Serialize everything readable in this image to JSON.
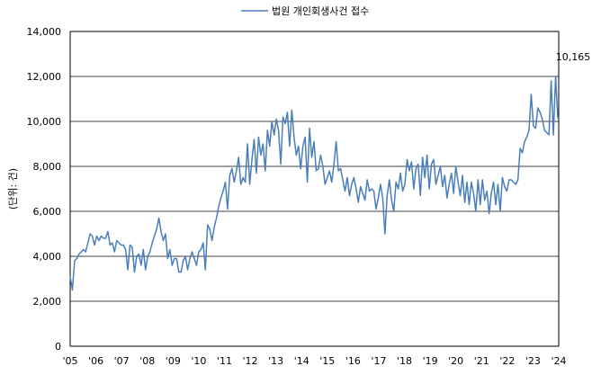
{
  "chart_data": {
    "type": "line",
    "title": "",
    "xlabel": "",
    "ylabel": "(단위: 건)",
    "ylim": [
      0,
      14000
    ],
    "yticks": [
      "0",
      "2,000",
      "4,000",
      "6,000",
      "8,000",
      "10,000",
      "12,000",
      "14,000"
    ],
    "xticks": [
      "'05",
      "'06",
      "'07",
      "'08",
      "'09",
      "'10",
      "'11",
      "'12",
      "'13",
      "'14",
      "'15",
      "'16",
      "'17",
      "'18",
      "'19",
      "'20",
      "'21",
      "'22",
      "'23",
      "'24"
    ],
    "grid": "horizontal",
    "legend": "top-center",
    "series": [
      {
        "name": "법원 개인회생사건 접수",
        "color": "#4a7ebb",
        "values": [
          3100,
          2500,
          3800,
          3900,
          4100,
          4200,
          4300,
          4200,
          4600,
          5000,
          4900,
          4500,
          4900,
          4700,
          4900,
          4800,
          4800,
          5100,
          4500,
          4600,
          4200,
          4700,
          4600,
          4500,
          4500,
          4300,
          3400,
          4500,
          4400,
          3300,
          4000,
          4100,
          3600,
          4300,
          3400,
          4000,
          4200,
          4600,
          4900,
          5200,
          5700,
          5100,
          4700,
          5000,
          3900,
          4300,
          3600,
          3900,
          3900,
          3300,
          3300,
          3800,
          4000,
          3400,
          3900,
          4200,
          3900,
          3600,
          4200,
          4300,
          4600,
          3400,
          5400,
          5200,
          4700,
          5300,
          5700,
          6200,
          6600,
          6900,
          7300,
          6100,
          7600,
          7900,
          7300,
          7800,
          8400,
          7200,
          7500,
          7300,
          9000,
          7200,
          8300,
          9200,
          7700,
          9300,
          8500,
          9000,
          7800,
          9600,
          8900,
          10000,
          9400,
          10100,
          9600,
          8100,
          10200,
          9900,
          10400,
          8900,
          10500,
          9300,
          8500,
          8900,
          7900,
          8900,
          9300,
          7300,
          9700,
          8400,
          9100,
          7800,
          7900,
          8500,
          8000,
          7200,
          7500,
          7800,
          7300,
          8100,
          9100,
          7800,
          7900,
          7400,
          6900,
          7500,
          6700,
          7200,
          7500,
          7000,
          6400,
          7100,
          6800,
          6500,
          7400,
          6900,
          7000,
          6900,
          6100,
          6600,
          7200,
          6600,
          5000,
          6700,
          7400,
          6500,
          6000,
          7300,
          7000,
          7700,
          6900,
          7200,
          8300,
          7800,
          8200,
          7000,
          7900,
          8100,
          6700,
          8400,
          7500,
          8500,
          7000,
          8100,
          8300,
          7200,
          7600,
          8000,
          7100,
          7600,
          6600,
          7200,
          7700,
          6800,
          8000,
          7300,
          6700,
          7600,
          6400,
          7300,
          6300,
          7300,
          6800,
          6000,
          7400,
          6300,
          7400,
          6500,
          6900,
          5900,
          6800,
          7300,
          6300,
          7200,
          6000,
          7500,
          7100,
          6900,
          7400,
          7400,
          7300,
          7200,
          7400,
          8800,
          8600,
          9100,
          9300,
          9600,
          11200,
          9800,
          9700,
          10600,
          10400,
          10100,
          9600,
          9500,
          9400,
          11800,
          9400,
          12000,
          10165
        ]
      }
    ],
    "annotations": [
      {
        "label": "10,165",
        "value": 10165,
        "at": "last point"
      }
    ]
  }
}
